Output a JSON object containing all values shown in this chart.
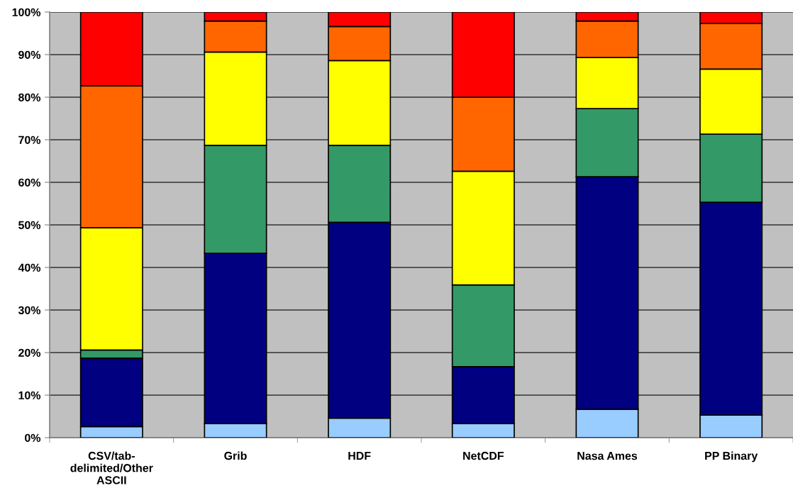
{
  "chart_data": {
    "type": "bar",
    "stacked": true,
    "categories": [
      "CSV/tab-delimited/Other ASCII",
      "Grib",
      "HDF",
      "NetCDF",
      "Nasa Ames",
      "PP Binary"
    ],
    "series": [
      {
        "color": "#99ccff",
        "values": [
          2.6,
          3.3,
          4.6,
          3.3,
          6.7,
          5.3
        ]
      },
      {
        "color": "#000080",
        "values": [
          16.1,
          40.0,
          46.0,
          13.4,
          54.6,
          50.0
        ]
      },
      {
        "color": "#339966",
        "values": [
          1.9,
          25.4,
          18.1,
          19.2,
          16.0,
          16.0
        ]
      },
      {
        "color": "#ffff00",
        "values": [
          28.7,
          21.9,
          19.9,
          26.7,
          12.0,
          15.3
        ]
      },
      {
        "color": "#ff6600",
        "values": [
          33.4,
          7.3,
          8.0,
          17.4,
          8.6,
          10.7
        ]
      },
      {
        "color": "#ff0000",
        "values": [
          17.3,
          2.1,
          3.4,
          20.0,
          2.1,
          2.7
        ]
      }
    ],
    "ylim": [
      0,
      100
    ],
    "yticks": [
      {
        "value": 0,
        "label": "0%"
      },
      {
        "value": 10,
        "label": "10%"
      },
      {
        "value": 20,
        "label": "20%"
      },
      {
        "value": 30,
        "label": "30%"
      },
      {
        "value": 40,
        "label": "40%"
      },
      {
        "value": 50,
        "label": "50%"
      },
      {
        "value": 60,
        "label": "60%"
      },
      {
        "value": 70,
        "label": "70%"
      },
      {
        "value": 80,
        "label": "80%"
      },
      {
        "value": 90,
        "label": "90%"
      },
      {
        "value": 100,
        "label": "100%"
      }
    ],
    "grid": "y"
  }
}
